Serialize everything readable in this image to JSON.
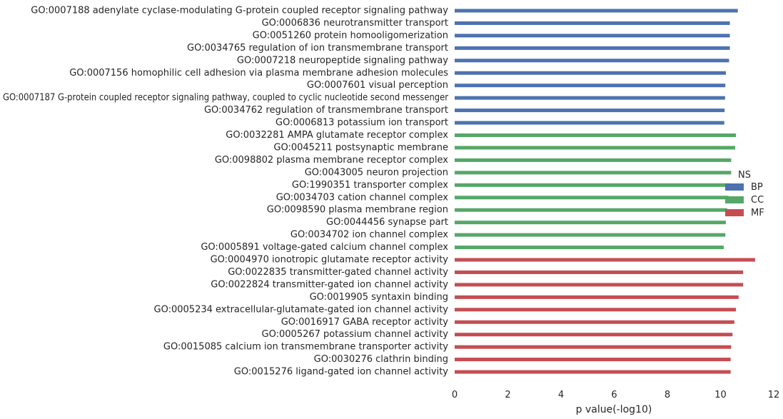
{
  "chart_data": {
    "type": "bar",
    "orientation": "horizontal",
    "xlabel": "p value(-log10)",
    "ylabel": "",
    "xlim": [
      0,
      12
    ],
    "xticks": [
      0,
      2,
      4,
      6,
      8,
      10,
      12
    ],
    "grid": false,
    "legend": {
      "title": "NS",
      "placement": "right",
      "entries": [
        {
          "name": "BP",
          "color": "#4c72b0"
        },
        {
          "name": "CC",
          "color": "#55a868"
        },
        {
          "name": "MF",
          "color": "#c44e52"
        }
      ]
    },
    "bars": [
      {
        "label": "GO:0007188 adenylate cyclase-modulating G-protein coupled receptor signaling pathway",
        "value": 10.65,
        "group": "BP"
      },
      {
        "label": "GO:0006836 neurotransmitter transport",
        "value": 10.35,
        "group": "BP"
      },
      {
        "label": "GO:0051260 protein homooligomerization",
        "value": 10.35,
        "group": "BP"
      },
      {
        "label": "GO:0034765 regulation of ion transmembrane transport",
        "value": 10.35,
        "group": "BP"
      },
      {
        "label": "GO:0007218 neuropeptide signaling pathway",
        "value": 10.32,
        "group": "BP"
      },
      {
        "label": "GO:0007156 homophilic cell adhesion via plasma membrane adhesion molecules",
        "value": 10.2,
        "group": "BP"
      },
      {
        "label": "GO:0007601 visual perception",
        "value": 10.18,
        "group": "BP"
      },
      {
        "label": "GO:0007187 G-protein coupled receptor signaling pathway, coupled to cyclic nucleotide second messenger",
        "value": 10.17,
        "group": "BP"
      },
      {
        "label": "GO:0034762 regulation of transmembrane transport",
        "value": 10.15,
        "group": "BP"
      },
      {
        "label": "GO:0006813 potassium ion transport",
        "value": 10.14,
        "group": "BP"
      },
      {
        "label": "GO:0032281 AMPA glutamate receptor complex",
        "value": 10.58,
        "group": "CC"
      },
      {
        "label": "GO:0045211 postsynaptic membrane",
        "value": 10.55,
        "group": "CC"
      },
      {
        "label": "GO:0098802 plasma membrane receptor complex",
        "value": 10.4,
        "group": "CC"
      },
      {
        "label": "GO:0043005 neuron projection",
        "value": 10.4,
        "group": "CC"
      },
      {
        "label": "GO:1990351 transporter complex",
        "value": 10.35,
        "group": "CC"
      },
      {
        "label": "GO:0034703 cation channel complex",
        "value": 10.3,
        "group": "CC"
      },
      {
        "label": "GO:0098590 plasma membrane region",
        "value": 10.25,
        "group": "CC"
      },
      {
        "label": "GO:0044456 synapse part",
        "value": 10.2,
        "group": "CC"
      },
      {
        "label": "GO:0034702 ion channel complex",
        "value": 10.18,
        "group": "CC"
      },
      {
        "label": "GO:0005891 voltage-gated calcium channel complex",
        "value": 10.12,
        "group": "CC"
      },
      {
        "label": "GO:0004970 ionotropic glutamate receptor activity",
        "value": 11.3,
        "group": "MF"
      },
      {
        "label": "GO:0022835 transmitter-gated channel activity",
        "value": 10.85,
        "group": "MF"
      },
      {
        "label": "GO:0022824 transmitter-gated ion channel activity",
        "value": 10.85,
        "group": "MF"
      },
      {
        "label": "GO:0019905 syntaxin binding",
        "value": 10.68,
        "group": "MF"
      },
      {
        "label": "GO:0005234 extracellular-glutamate-gated ion channel activity",
        "value": 10.58,
        "group": "MF"
      },
      {
        "label": "GO:0016917 GABA receptor activity",
        "value": 10.52,
        "group": "MF"
      },
      {
        "label": "GO:0005267 potassium channel activity",
        "value": 10.45,
        "group": "MF"
      },
      {
        "label": "GO:0015085 calcium ion transmembrane transporter activity",
        "value": 10.4,
        "group": "MF"
      },
      {
        "label": "GO:0030276 clathrin binding",
        "value": 10.38,
        "group": "MF"
      },
      {
        "label": "GO:0015276 ligand-gated ion channel activity",
        "value": 10.38,
        "group": "MF"
      }
    ]
  }
}
